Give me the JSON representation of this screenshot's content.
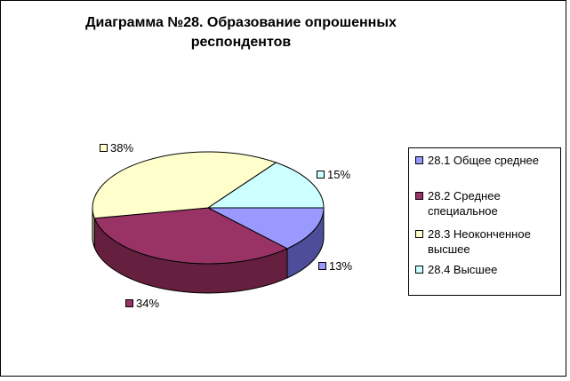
{
  "chart_data": {
    "type": "pie",
    "title": "Диаграмма №28. Образование опрошенных респондентов",
    "title_lines": [
      "Диаграмма №28. Образование опрошенных",
      "респондентов"
    ],
    "categories": [
      "28.1 Общее среднее",
      "28.2 Среднее специальное",
      "28.3 Неоконченное высшее",
      "28.4 Высшее"
    ],
    "values": [
      13,
      34,
      38,
      15
    ],
    "data_labels": [
      "13%",
      "34%",
      "38%",
      "15%"
    ],
    "colors": [
      "#9999ff",
      "#993366",
      "#ffffcc",
      "#ccffff"
    ],
    "side_colors": [
      "#4d4d99",
      "#66203f",
      "#b3b380",
      "#80b3b3"
    ],
    "legend": {
      "position": "right",
      "items": [
        {
          "lines": [
            "28.1 Общее среднее"
          ]
        },
        {
          "lines": [
            "28.2 Среднее",
            "специальное"
          ]
        },
        {
          "lines": [
            "28.3 Неоконченное",
            "высшее"
          ]
        },
        {
          "lines": [
            "28.4 Высшее"
          ]
        }
      ]
    },
    "style": "3d-pie"
  }
}
